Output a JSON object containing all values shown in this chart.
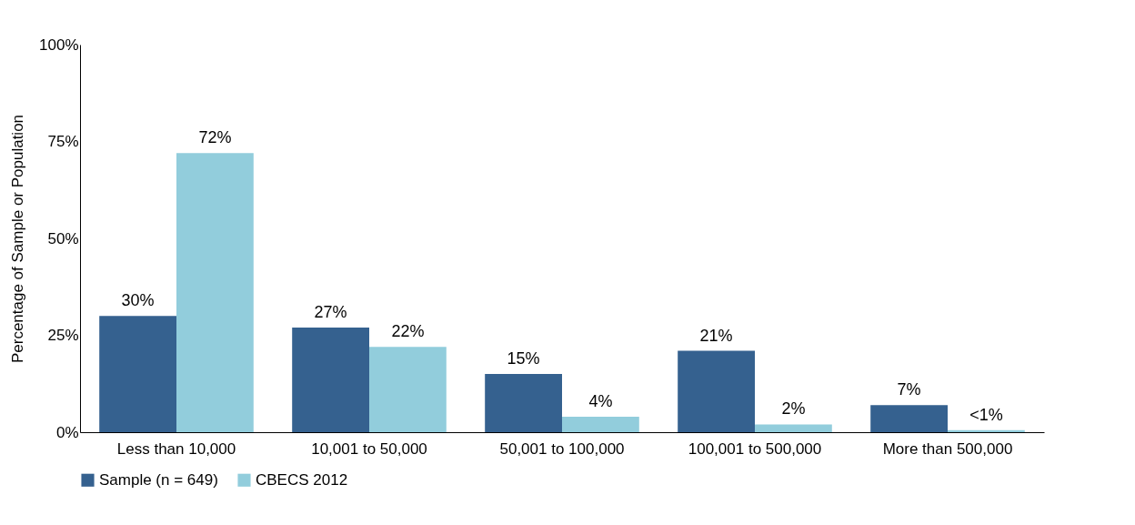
{
  "chart_data": {
    "type": "bar",
    "ylabel": "Percentage of Sample or Population",
    "categories": [
      "Less than 10,000",
      "10,001 to 50,000",
      "50,001 to 100,000",
      "100,001 to 500,000",
      "More than 500,000"
    ],
    "series": [
      {
        "name": "Sample (n = 649)",
        "color": "#35618f",
        "values": [
          30,
          27,
          15,
          21,
          7
        ],
        "value_labels": [
          "30%",
          "27%",
          "15%",
          "21%",
          "7%"
        ]
      },
      {
        "name": "CBECS 2012",
        "color": "#92cddc",
        "values": [
          72,
          22,
          4,
          2,
          0.5
        ],
        "value_labels": [
          "72%",
          "22%",
          "4%",
          "2%",
          "<1%"
        ]
      }
    ],
    "ylim": [
      0,
      100
    ],
    "yticks": [
      {
        "value": 0,
        "label": "0%"
      },
      {
        "value": 25,
        "label": "25%"
      },
      {
        "value": 50,
        "label": "50%"
      },
      {
        "value": 75,
        "label": "75%"
      },
      {
        "value": 100,
        "label": "100%"
      }
    ],
    "grid": false,
    "legend": "bottom"
  }
}
